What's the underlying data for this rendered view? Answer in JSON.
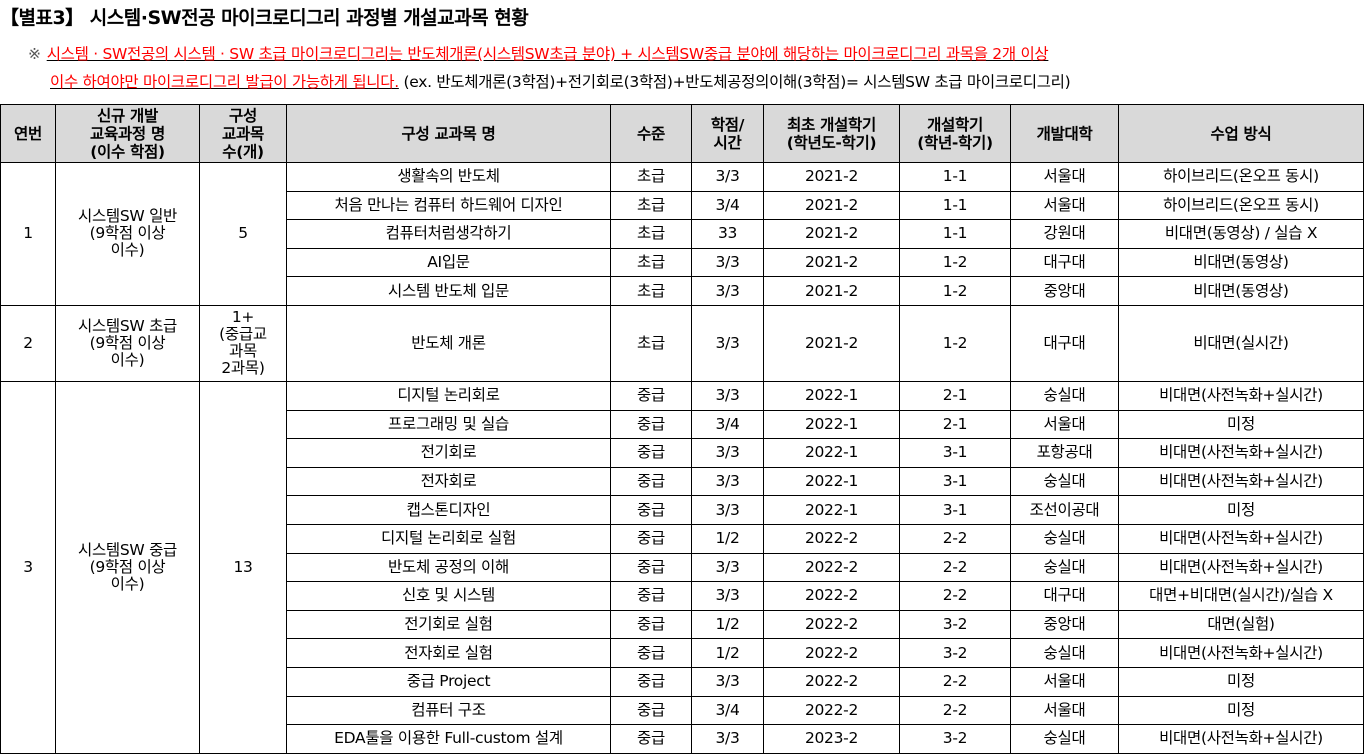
{
  "title": "【별표3】 시스템·SW전공 마이크로디그리 과정별 개설교과목 현황",
  "note": {
    "mark": "※",
    "red_line1": "시스템 · SW전공의 시스템 · SW 초급 마이크로디그리는 반도체개론(시스템SW초급 분야) + 시스템SW중급 분야에 해당하는 마이크로디그리 과목을 2개 이상",
    "red_line2": "이수 하여야만 마이크로디그리 발급이 가능하게 됩니다.",
    "example": "(ex. 반도체개론(3학점)+전기회로(3학점)+반도체공정의이해(3학점)= 시스템SW 초급 마이크로디그리)"
  },
  "colors": {
    "header_bg": "#d9d9d9",
    "note_red": "#ff0000"
  },
  "table": {
    "headers": [
      "연번",
      "신규 개발\n교육과정 명\n(이수 학점)",
      "구성\n교과목\n수(개)",
      "구성 교과목 명",
      "수준",
      "학점/\n시간",
      "최초 개설학기\n(학년도-학기)",
      "개설학기\n(학년-학기)",
      "개발대학",
      "수업 방식"
    ],
    "groups": [
      {
        "no": "1",
        "program": "시스템SW 일반\n(9학점 이상\n이수)",
        "count": "5",
        "courses": [
          [
            "생활속의 반도체",
            "초급",
            "3/3",
            "2021-2",
            "1-1",
            "서울대",
            "하이브리드(온오프 동시)"
          ],
          [
            "처음 만나는 컴퓨터 하드웨어 디자인",
            "초급",
            "3/4",
            "2021-2",
            "1-1",
            "서울대",
            "하이브리드(온오프 동시)"
          ],
          [
            "컴퓨터처럼생각하기",
            "초급",
            "33",
            "2021-2",
            "1-1",
            "강원대",
            "비대면(동영상) / 실습 X"
          ],
          [
            "AI입문",
            "초급",
            "3/3",
            "2021-2",
            "1-2",
            "대구대",
            "비대면(동영상)"
          ],
          [
            "시스템 반도체 입문",
            "초급",
            "3/3",
            "2021-2",
            "1-2",
            "중앙대",
            "비대면(동영상)"
          ]
        ]
      },
      {
        "no": "2",
        "program": "시스템SW 초급\n(9학점 이상\n이수)",
        "count": "1+\n(중급교\n과목\n2과목)",
        "courses": [
          [
            "반도체 개론",
            "초급",
            "3/3",
            "2021-2",
            "1-2",
            "대구대",
            "비대면(실시간)"
          ]
        ]
      },
      {
        "no": "3",
        "program": "시스템SW 중급\n(9학점 이상\n이수)",
        "count": "13",
        "courses": [
          [
            "디지털 논리회로",
            "중급",
            "3/3",
            "2022-1",
            "2-1",
            "숭실대",
            "비대면(사전녹화+실시간)"
          ],
          [
            "프로그래밍 및 실습",
            "중급",
            "3/4",
            "2022-1",
            "2-1",
            "서울대",
            "미정"
          ],
          [
            "전기회로",
            "중급",
            "3/3",
            "2022-1",
            "3-1",
            "포항공대",
            "비대면(사전녹화+실시간)"
          ],
          [
            "전자회로",
            "중급",
            "3/3",
            "2022-1",
            "3-1",
            "숭실대",
            "비대면(사전녹화+실시간)"
          ],
          [
            "캡스톤디자인",
            "중급",
            "3/3",
            "2022-1",
            "3-1",
            "조선이공대",
            "미정"
          ],
          [
            "디지털 논리회로 실험",
            "중급",
            "1/2",
            "2022-2",
            "2-2",
            "숭실대",
            "비대면(사전녹화+실시간)"
          ],
          [
            "반도체 공정의 이해",
            "중급",
            "3/3",
            "2022-2",
            "2-2",
            "숭실대",
            "비대면(사전녹화+실시간)"
          ],
          [
            "신호 및 시스템",
            "중급",
            "3/3",
            "2022-2",
            "2-2",
            "대구대",
            "대면+비대면(실시간)/실습 X"
          ],
          [
            "전기회로 실험",
            "중급",
            "1/2",
            "2022-2",
            "3-2",
            "중앙대",
            "대면(실험)"
          ],
          [
            "전자회로 실험",
            "중급",
            "1/2",
            "2022-2",
            "3-2",
            "숭실대",
            "비대면(사전녹화+실시간)"
          ],
          [
            "중급 Project",
            "중급",
            "3/3",
            "2022-2",
            "2-2",
            "서울대",
            "미정"
          ],
          [
            "컴퓨터 구조",
            "중급",
            "3/4",
            "2022-2",
            "2-2",
            "서울대",
            "미정"
          ],
          [
            "EDA툴을 이용한 Full-custom 설계",
            "중급",
            "3/3",
            "2023-2",
            "3-2",
            "숭실대",
            "비대면(사전녹화+실시간)"
          ]
        ]
      }
    ]
  }
}
